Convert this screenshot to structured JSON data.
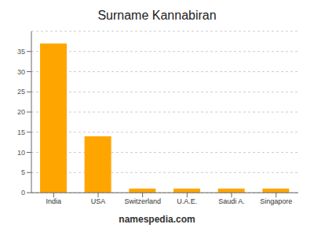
{
  "chart_data": {
    "type": "bar",
    "title": "Surname Kannabiran",
    "categories": [
      "India",
      "USA",
      "Switzerland",
      "U.A.E.",
      "Saudi A.",
      "Singapore"
    ],
    "values": [
      37,
      14,
      1,
      1,
      1,
      1
    ],
    "color": "#FFA500",
    "ylim": [
      0,
      40
    ],
    "yticks": [
      0,
      5,
      10,
      15,
      20,
      25,
      30,
      35
    ],
    "grid": true,
    "footer": "namespedia.com"
  }
}
